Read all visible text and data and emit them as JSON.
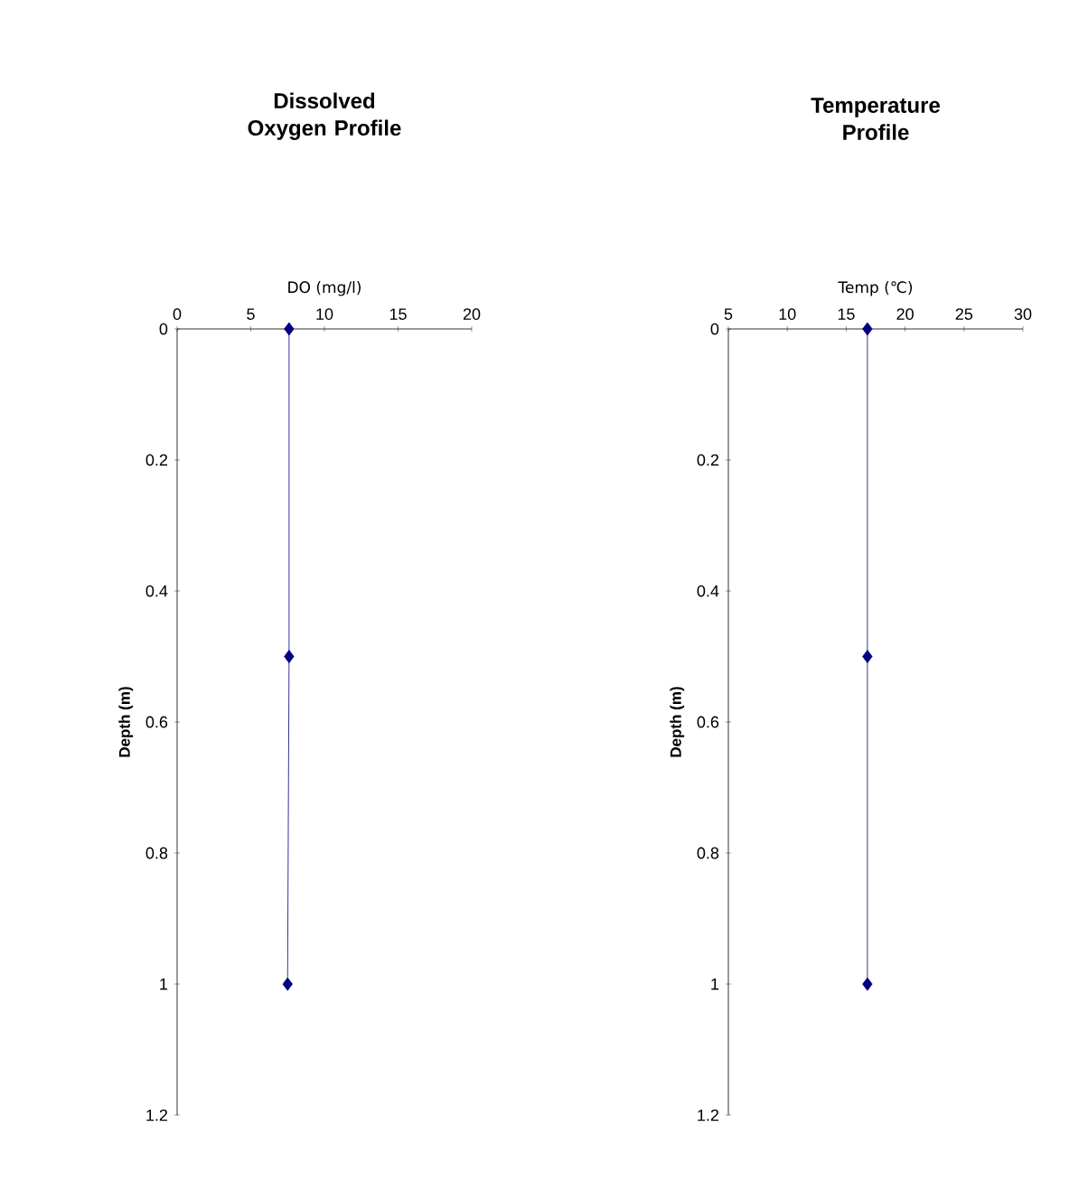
{
  "chart_data": [
    {
      "type": "line",
      "title": "Dissolved Oxygen Profile",
      "xlabel": "DO (mg/l)",
      "ylabel": "Depth (m)",
      "series": [
        {
          "color": "#000080",
          "x": [
            7.6,
            7.6,
            7.5
          ],
          "values": [
            0,
            0.5,
            1
          ]
        }
      ],
      "xlim": [
        0,
        20
      ],
      "xticks": [
        0,
        5,
        10,
        15,
        20
      ],
      "ylim": [
        1.2,
        0
      ],
      "yticks": [
        0,
        0.2,
        0.4,
        0.6,
        0.8,
        1,
        1.2
      ],
      "marker": "diamond",
      "line_style": "solid",
      "grid": false
    },
    {
      "type": "line",
      "title": "Temperature Profile",
      "xlabel": "Temp (℃)",
      "ylabel": "Depth (m)",
      "series": [
        {
          "color": "#000080",
          "x": [
            16.8,
            16.8,
            16.8
          ],
          "values": [
            0,
            0.5,
            1
          ]
        }
      ],
      "xlim": [
        5,
        30
      ],
      "xticks": [
        5,
        10,
        15,
        20,
        25,
        30
      ],
      "ylim": [
        1.2,
        0
      ],
      "yticks": [
        0,
        0.2,
        0.4,
        0.6,
        0.8,
        1,
        1.2
      ],
      "marker": "diamond",
      "line_style": "solid",
      "grid": false
    }
  ]
}
